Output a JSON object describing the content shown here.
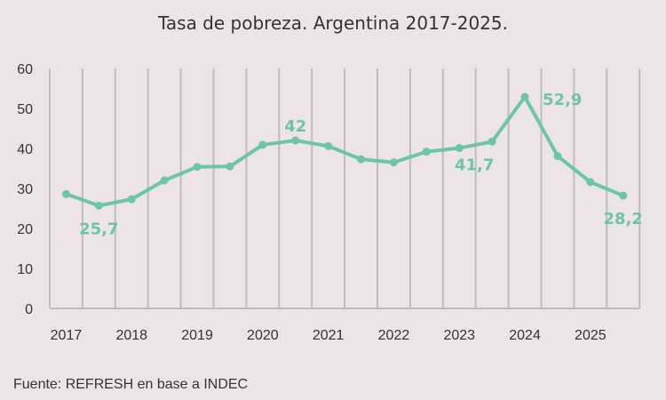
{
  "chart_data": {
    "type": "line",
    "title": "Tasa de pobreza. Argentina 2017-2025.",
    "source": "Fuente: REFRESH en base a INDEC",
    "xlabel": "",
    "ylabel": "",
    "ylim": [
      0,
      60
    ],
    "yticks": [
      0,
      10,
      20,
      30,
      40,
      50,
      60
    ],
    "year_labels": [
      "2017",
      "2018",
      "2019",
      "2020",
      "2021",
      "2022",
      "2023",
      "2024",
      "2025"
    ],
    "grid": true,
    "color": "#6cc5a4",
    "series": [
      {
        "name": "Tasa de pobreza",
        "values": [
          28.6,
          25.7,
          27.3,
          32.0,
          35.4,
          35.5,
          40.9,
          42.0,
          40.6,
          37.3,
          36.5,
          39.2,
          40.1,
          41.7,
          52.9,
          38.1,
          31.6,
          28.2
        ]
      }
    ],
    "labeled_points": [
      {
        "index": 1,
        "text": "25,7",
        "position": "below"
      },
      {
        "index": 7,
        "text": "42",
        "position": "above"
      },
      {
        "index": 13,
        "text": "41,7",
        "position": "below-left"
      },
      {
        "index": 14,
        "text": "52,9",
        "position": "right"
      },
      {
        "index": 17,
        "text": "28,2",
        "position": "below"
      }
    ]
  }
}
